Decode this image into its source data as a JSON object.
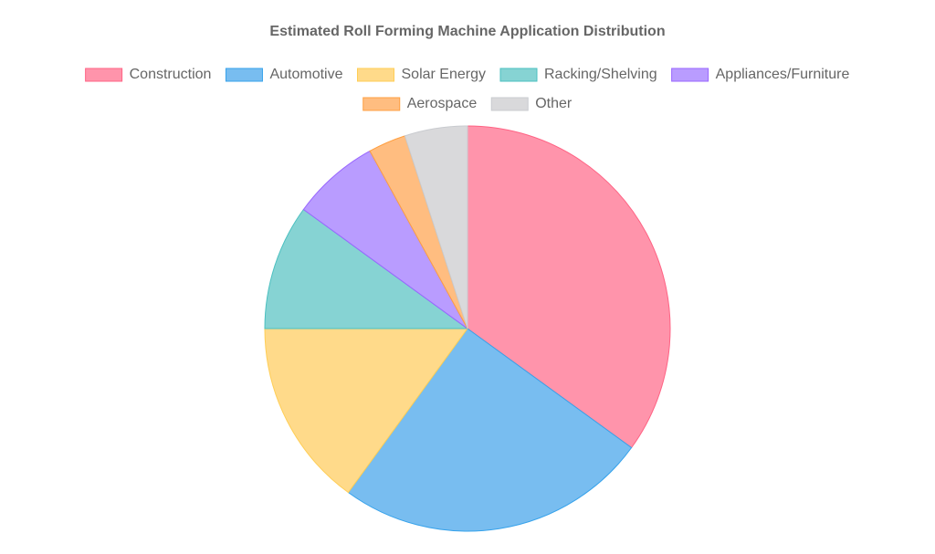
{
  "chart_data": {
    "type": "pie",
    "title": "Estimated Roll Forming Machine Application Distribution",
    "categories": [
      "Construction",
      "Automotive",
      "Solar Energy",
      "Racking/Shelving",
      "Appliances/Furniture",
      "Aerospace",
      "Other"
    ],
    "values": [
      35,
      25,
      15,
      10,
      7,
      3,
      5
    ],
    "colors": [
      "#ff94ab",
      "#78bdf0",
      "#ffda8a",
      "#86d3d3",
      "#b99cff",
      "#ffbd80",
      "#d9d9db"
    ],
    "border_colors": [
      "#ff6384",
      "#36a2eb",
      "#ffce56",
      "#4bc0c0",
      "#9966ff",
      "#ff9f40",
      "#c9cbcf"
    ],
    "legend": "top"
  }
}
